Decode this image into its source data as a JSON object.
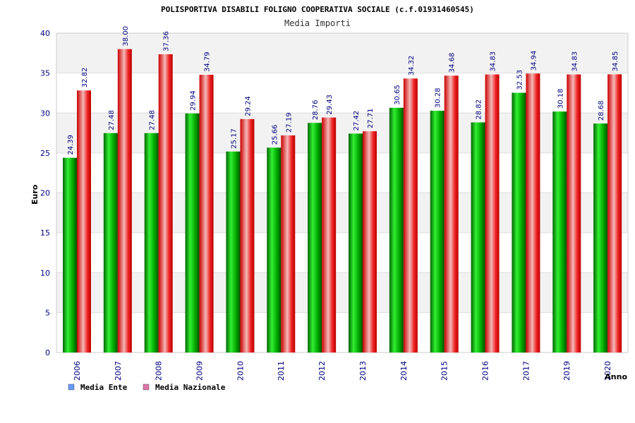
{
  "chart_data": {
    "type": "bar",
    "title": "POLISPORTIVA DISABILI FOLIGNO COOPERATIVA SOCIALE (c.f.01931460545)",
    "subtitle": "Media Importi",
    "xlabel": "Anno",
    "ylabel": "Euro",
    "ylim": [
      0,
      40
    ],
    "yticks": [
      "0",
      "5",
      "10",
      "15",
      "20",
      "25",
      "30",
      "35",
      "40"
    ],
    "categories": [
      "2006",
      "2007",
      "2008",
      "2009",
      "2010",
      "2011",
      "2012",
      "2013",
      "2014",
      "2015",
      "2016",
      "2017",
      "2019",
      "2020"
    ],
    "series": [
      {
        "name": "Media Ente",
        "color": "#00aa00",
        "legend_color": "#6699ff",
        "values": [
          24.39,
          27.48,
          27.48,
          29.94,
          25.17,
          25.66,
          28.76,
          27.42,
          30.65,
          30.28,
          28.82,
          32.53,
          30.18,
          28.68
        ],
        "labels": [
          "24.39",
          "27.48",
          "27.48",
          "29.94",
          "25.17",
          "25.66",
          "28.76",
          "27.42",
          "30.65",
          "30.28",
          "28.82",
          "32.53",
          "30.18",
          "28.68"
        ]
      },
      {
        "name": "Media Nazionale",
        "color": "#ee1111",
        "legend_color": "#dd77aa",
        "values": [
          32.82,
          38.0,
          37.36,
          34.79,
          29.24,
          27.19,
          29.43,
          27.71,
          34.32,
          34.68,
          34.83,
          34.94,
          34.83,
          34.85
        ],
        "labels": [
          "32.82",
          "38.00",
          "37.36",
          "34.79",
          "29.24",
          "27.19",
          "29.43",
          "27.71",
          "34.32",
          "34.68",
          "34.83",
          "34.94",
          "34.83",
          "34.85"
        ]
      }
    ],
    "grid": true,
    "legend": "bottom-left"
  }
}
